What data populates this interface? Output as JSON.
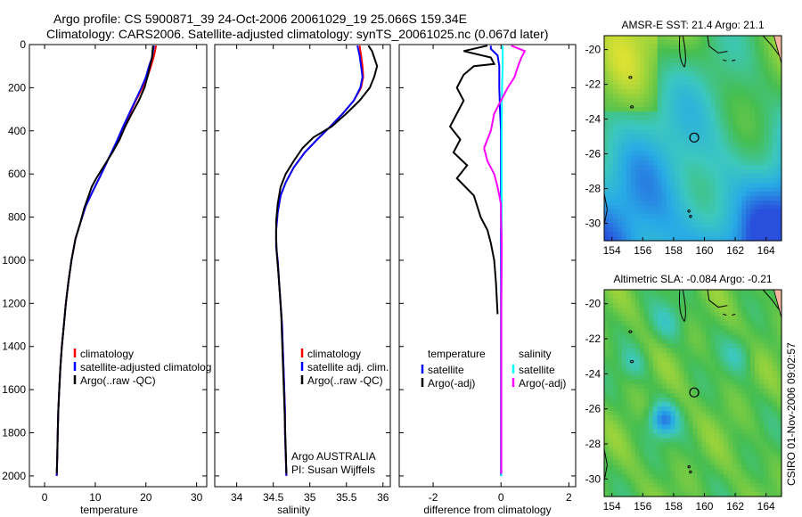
{
  "header": {
    "line1": "Argo profile: CS 5900871_39 24-Oct-2006 20061029_19 25.066S 159.34E",
    "line2": "Climatology: CARS2006. Satellite-adjusted climatology: synTS_20061025.nc (0.067d later)"
  },
  "side_label": "CSIRO 01-Nov-2006 09:02:57",
  "colors": {
    "climatology": "#ff0000",
    "satellite": "#0000ff",
    "argo": "#000000",
    "sat_diff": "#00ffff",
    "sal_diff": "#ff00ff"
  },
  "chart_data": [
    {
      "type": "line",
      "id": "temperature",
      "xlabel": "temperature",
      "ylabel": "",
      "xlim": [
        -3,
        32
      ],
      "ylim": [
        2050,
        0
      ],
      "y_reversed": true,
      "xticks": [
        0,
        10,
        20,
        30
      ],
      "yticks": [
        0,
        200,
        400,
        600,
        800,
        1000,
        1200,
        1400,
        1600,
        1800,
        2000
      ],
      "legend": {
        "position": "lower-right",
        "entries": [
          "climatology",
          "satellite-adjusted climatolog",
          "Argo(..raw -QC)"
        ]
      },
      "series": [
        {
          "name": "climatology",
          "color": "#ff0000",
          "points": [
            [
              22,
              5
            ],
            [
              21.8,
              30
            ],
            [
              21.5,
              60
            ],
            [
              21,
              100
            ],
            [
              20.3,
              150
            ],
            [
              19.3,
              200
            ],
            [
              18,
              260
            ],
            [
              16.8,
              320
            ],
            [
              15.6,
              380
            ],
            [
              14.3,
              450
            ],
            [
              12.8,
              520
            ],
            [
              11.2,
              600
            ],
            [
              9.5,
              680
            ],
            [
              8.1,
              750
            ],
            [
              7,
              830
            ],
            [
              6.1,
              900
            ],
            [
              5.3,
              1000
            ],
            [
              4.7,
              1100
            ],
            [
              4.2,
              1200
            ],
            [
              3.8,
              1300
            ],
            [
              3.4,
              1400
            ],
            [
              3.1,
              1500
            ],
            [
              2.9,
              1600
            ],
            [
              2.7,
              1700
            ],
            [
              2.6,
              1800
            ],
            [
              2.5,
              1900
            ],
            [
              2.4,
              2000
            ]
          ]
        },
        {
          "name": "satellite-adjusted climatolog",
          "color": "#0000ff",
          "points": [
            [
              21.6,
              5
            ],
            [
              21.4,
              30
            ],
            [
              21.2,
              60
            ],
            [
              20.6,
              100
            ],
            [
              20,
              150
            ],
            [
              19.1,
              200
            ],
            [
              17.9,
              260
            ],
            [
              16.7,
              320
            ],
            [
              15.5,
              380
            ],
            [
              14.2,
              450
            ],
            [
              12.8,
              520
            ],
            [
              11.2,
              600
            ],
            [
              9.5,
              680
            ],
            [
              8.1,
              750
            ],
            [
              7,
              830
            ],
            [
              6.1,
              900
            ],
            [
              5.3,
              1000
            ],
            [
              4.7,
              1100
            ],
            [
              4.2,
              1200
            ],
            [
              3.8,
              1300
            ],
            [
              3.4,
              1400
            ],
            [
              3.1,
              1500
            ],
            [
              2.9,
              1600
            ],
            [
              2.7,
              1700
            ],
            [
              2.6,
              1800
            ],
            [
              2.5,
              1900
            ],
            [
              2.4,
              2000
            ]
          ]
        },
        {
          "name": "Argo(..raw -QC)",
          "color": "#000000",
          "points": [
            [
              21.4,
              5
            ],
            [
              21.3,
              30
            ],
            [
              21.2,
              60
            ],
            [
              20.8,
              100
            ],
            [
              20.3,
              150
            ],
            [
              19.7,
              200
            ],
            [
              18.6,
              260
            ],
            [
              17.2,
              320
            ],
            [
              15.9,
              380
            ],
            [
              14.8,
              440
            ],
            [
              13.4,
              500
            ],
            [
              11.8,
              560
            ],
            [
              10.2,
              620
            ],
            [
              9.3,
              660
            ],
            [
              8.7,
              700
            ],
            [
              7.8,
              760
            ],
            [
              7,
              830
            ],
            [
              6.1,
              900
            ],
            [
              5.3,
              1000
            ],
            [
              4.7,
              1100
            ],
            [
              4.2,
              1200
            ],
            [
              3.8,
              1300
            ],
            [
              3.4,
              1400
            ],
            [
              3.1,
              1500
            ],
            [
              2.9,
              1600
            ],
            [
              2.7,
              1700
            ],
            [
              2.6,
              1800
            ],
            [
              2.5,
              1900
            ],
            [
              2.4,
              1990
            ]
          ]
        }
      ]
    },
    {
      "type": "line",
      "id": "salinity",
      "xlabel": "salinity",
      "ylabel": "",
      "xlim": [
        33.7,
        36.1
      ],
      "ylim": [
        2050,
        0
      ],
      "y_reversed": true,
      "xticks": [
        34,
        34.5,
        35,
        35.5,
        36
      ],
      "xtick_labels": [
        "34",
        "34.5",
        "35",
        "35.5",
        "36"
      ],
      "legend": {
        "position": "lower-right",
        "entries": [
          "climatology",
          "satellite adj. clim.",
          "Argo(..raw -QC)"
        ]
      },
      "annotation": [
        "Argo AUSTRALIA",
        "PI: Susan Wijffels"
      ],
      "series": [
        {
          "name": "climatology",
          "color": "#ff0000",
          "points": [
            [
              35.68,
              5
            ],
            [
              35.7,
              50
            ],
            [
              35.72,
              100
            ],
            [
              35.73,
              150
            ],
            [
              35.7,
              200
            ],
            [
              35.6,
              260
            ],
            [
              35.45,
              320
            ],
            [
              35.28,
              380
            ],
            [
              35.1,
              440
            ],
            [
              34.93,
              500
            ],
            [
              34.78,
              570
            ],
            [
              34.67,
              640
            ],
            [
              34.6,
              700
            ],
            [
              34.56,
              780
            ],
            [
              34.54,
              860
            ],
            [
              34.54,
              940
            ],
            [
              34.56,
              1000
            ],
            [
              34.58,
              1100
            ],
            [
              34.6,
              1200
            ],
            [
              34.62,
              1300
            ],
            [
              34.63,
              1400
            ],
            [
              34.64,
              1500
            ],
            [
              34.65,
              1600
            ],
            [
              34.66,
              1700
            ],
            [
              34.66,
              1800
            ],
            [
              34.67,
              1900
            ],
            [
              34.68,
              2000
            ]
          ]
        },
        {
          "name": "satellite adj. clim.",
          "color": "#0000ff",
          "points": [
            [
              35.65,
              5
            ],
            [
              35.68,
              50
            ],
            [
              35.7,
              100
            ],
            [
              35.72,
              150
            ],
            [
              35.69,
              200
            ],
            [
              35.6,
              260
            ],
            [
              35.45,
              320
            ],
            [
              35.28,
              380
            ],
            [
              35.1,
              440
            ],
            [
              34.93,
              500
            ],
            [
              34.78,
              570
            ],
            [
              34.67,
              640
            ],
            [
              34.6,
              700
            ],
            [
              34.56,
              780
            ],
            [
              34.54,
              860
            ],
            [
              34.54,
              940
            ],
            [
              34.56,
              1000
            ],
            [
              34.58,
              1100
            ],
            [
              34.6,
              1200
            ],
            [
              34.62,
              1300
            ],
            [
              34.63,
              1400
            ],
            [
              34.64,
              1500
            ],
            [
              34.65,
              1600
            ],
            [
              34.66,
              1700
            ],
            [
              34.66,
              1800
            ],
            [
              34.67,
              1900
            ],
            [
              34.68,
              2000
            ]
          ]
        },
        {
          "name": "Argo(..raw -QC)",
          "color": "#000000",
          "points": [
            [
              35.8,
              5
            ],
            [
              35.85,
              30
            ],
            [
              35.88,
              60
            ],
            [
              35.92,
              100
            ],
            [
              35.88,
              150
            ],
            [
              35.82,
              200
            ],
            [
              35.68,
              260
            ],
            [
              35.5,
              320
            ],
            [
              35.3,
              380
            ],
            [
              35.05,
              430
            ],
            [
              34.9,
              480
            ],
            [
              34.78,
              540
            ],
            [
              34.67,
              600
            ],
            [
              34.6,
              660
            ],
            [
              34.56,
              740
            ],
            [
              34.54,
              820
            ],
            [
              34.54,
              900
            ],
            [
              34.55,
              980
            ],
            [
              34.57,
              1060
            ],
            [
              34.59,
              1160
            ],
            [
              34.61,
              1260
            ],
            [
              34.62,
              1360
            ],
            [
              34.63,
              1460
            ],
            [
              34.64,
              1560
            ],
            [
              34.65,
              1660
            ],
            [
              34.66,
              1760
            ],
            [
              34.67,
              1860
            ],
            [
              34.68,
              1990
            ]
          ]
        }
      ]
    },
    {
      "type": "line",
      "id": "difference",
      "xlabel": "difference from climatology",
      "ylabel": "",
      "xlim": [
        -3,
        2.2
      ],
      "ylim": [
        2050,
        0
      ],
      "y_reversed": true,
      "xticks": [
        -2,
        0,
        2
      ],
      "legend": {
        "position": "lower-right",
        "columns": [
          {
            "heading": "temperature",
            "entries": [
              "satellite",
              "Argo(-adj)"
            ]
          },
          {
            "heading": "salinity",
            "entries": [
              "satellite",
              "Argo(-adj)"
            ]
          }
        ]
      },
      "series": [
        {
          "name": "temperature satellite",
          "color": "#0000ff",
          "points": [
            [
              -0.3,
              5
            ],
            [
              -0.3,
              20
            ],
            [
              -0.1,
              50
            ],
            [
              -0.05,
              100
            ],
            [
              -0.05,
              200
            ],
            [
              -0.03,
              300
            ],
            [
              0,
              400
            ],
            [
              0,
              2000
            ]
          ]
        },
        {
          "name": "temperature Argo(-adj)",
          "color": "#000000",
          "points": [
            [
              -0.4,
              5
            ],
            [
              -1.1,
              30
            ],
            [
              -0.3,
              60
            ],
            [
              -0.2,
              90
            ],
            [
              -0.8,
              100
            ],
            [
              -1.1,
              140
            ],
            [
              -1.3,
              200
            ],
            [
              -1.1,
              260
            ],
            [
              -1.3,
              320
            ],
            [
              -1.5,
              380
            ],
            [
              -1.2,
              440
            ],
            [
              -1.4,
              500
            ],
            [
              -1.0,
              560
            ],
            [
              -1.3,
              620
            ],
            [
              -0.8,
              700
            ],
            [
              -0.6,
              800
            ],
            [
              -0.4,
              860
            ],
            [
              -0.3,
              920
            ],
            [
              -0.2,
              1000
            ],
            [
              -0.15,
              1100
            ],
            [
              -0.1,
              1250
            ]
          ]
        },
        {
          "name": "salinity satellite",
          "color": "#00ffff",
          "points": [
            [
              0.05,
              5
            ],
            [
              0.05,
              100
            ],
            [
              0.03,
              200
            ],
            [
              0.02,
              400
            ],
            [
              0.02,
              800
            ],
            [
              0.01,
              1200
            ],
            [
              0.01,
              2000
            ]
          ]
        },
        {
          "name": "salinity Argo(-adj)",
          "color": "#ff00ff",
          "points": [
            [
              0.3,
              5
            ],
            [
              0.7,
              30
            ],
            [
              0.6,
              60
            ],
            [
              0.5,
              100
            ],
            [
              0.4,
              150
            ],
            [
              0.2,
              200
            ],
            [
              0,
              260
            ],
            [
              -0.2,
              320
            ],
            [
              -0.3,
              400
            ],
            [
              -0.5,
              480
            ],
            [
              -0.4,
              540
            ],
            [
              -0.2,
              600
            ],
            [
              -0.1,
              660
            ],
            [
              0,
              740
            ],
            [
              0,
              800
            ],
            [
              0.02,
              900
            ],
            [
              0.02,
              1000
            ],
            [
              0.01,
              1200
            ],
            [
              0.01,
              1400
            ],
            [
              0.01,
              1600
            ],
            [
              0.01,
              1800
            ],
            [
              0.01,
              1990
            ]
          ]
        }
      ]
    },
    {
      "type": "heatmap",
      "id": "sst_map",
      "title": "AMSR-E SST: 21.4 Argo: 21.1",
      "xlim": [
        153.5,
        165
      ],
      "ylim": [
        -31,
        -19.2
      ],
      "xticks": [
        154,
        156,
        158,
        160,
        162,
        164
      ],
      "yticks": [
        -20,
        -22,
        -24,
        -26,
        -28,
        -30
      ],
      "float_position": [
        159.34,
        -25.066
      ]
    },
    {
      "type": "heatmap",
      "id": "sla_map",
      "title": "Altimetric SLA: -0.084 Argo: -0.21",
      "xlim": [
        153.5,
        165
      ],
      "ylim": [
        -31,
        -19.2
      ],
      "xticks": [
        154,
        156,
        158,
        160,
        162,
        164
      ],
      "yticks": [
        -20,
        -22,
        -24,
        -26,
        -28,
        -30
      ],
      "float_position": [
        159.34,
        -25.066
      ]
    }
  ]
}
